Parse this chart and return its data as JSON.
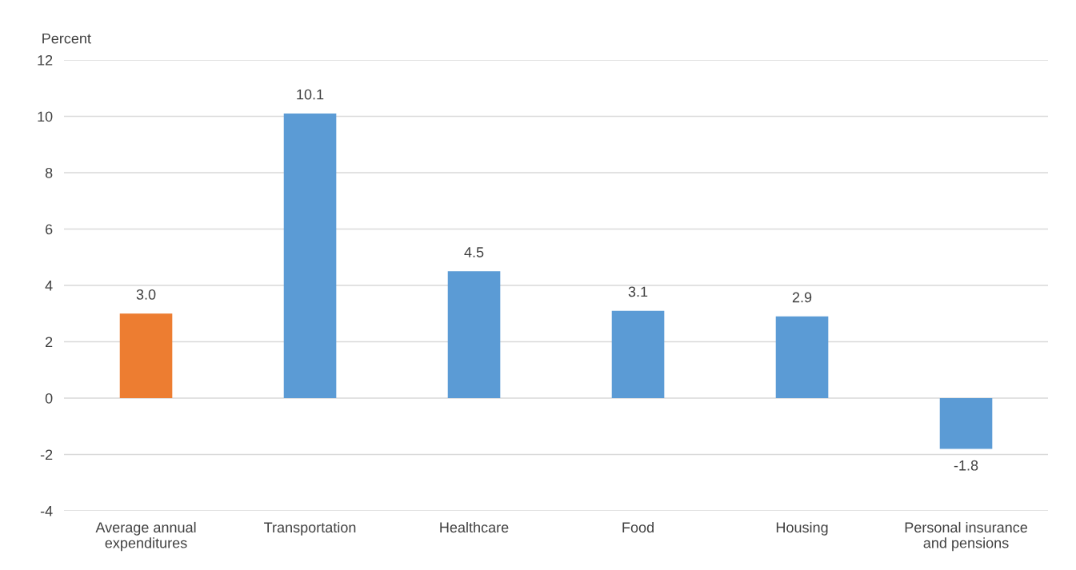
{
  "chart_data": {
    "type": "bar",
    "ylabel": "Percent",
    "categories": [
      "Average annual\nexpenditures",
      "Transportation",
      "Healthcare",
      "Food",
      "Housing",
      "Personal insurance\nand pensions"
    ],
    "values": [
      3.0,
      10.1,
      4.5,
      3.1,
      2.9,
      -1.8
    ],
    "colors": [
      "#ed7d31",
      "#5b9bd5",
      "#5b9bd5",
      "#5b9bd5",
      "#5b9bd5",
      "#5b9bd5"
    ],
    "value_labels": [
      "3.0",
      "10.1",
      "4.5",
      "3.1",
      "2.9",
      "-1.8"
    ],
    "ylim": [
      -4,
      12
    ],
    "yticks": [
      -4,
      -2,
      0,
      2,
      4,
      6,
      8,
      10,
      12
    ],
    "grid": "y",
    "legend": false
  }
}
